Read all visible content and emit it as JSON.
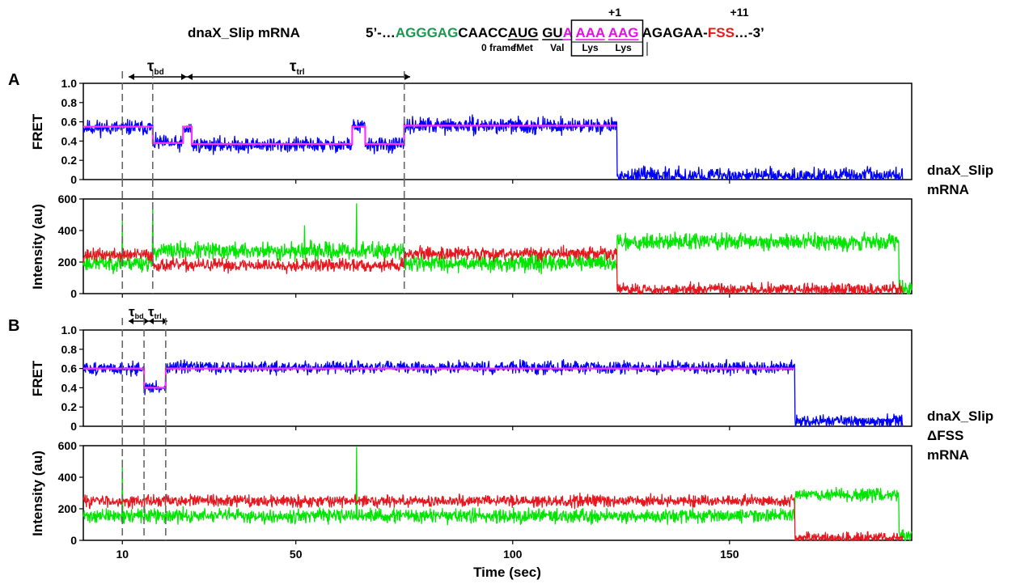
{
  "header": {
    "mrna_label": "dnaX_Slip mRNA",
    "pos1": "+1",
    "pos11": "+11",
    "seq_parts": [
      {
        "text": "5’-…",
        "color": "#000000"
      },
      {
        "text": "AGGGAG",
        "color": "#1a9850"
      },
      {
        "text": "CAACC",
        "color": "#000000"
      },
      {
        "text": "AUG",
        "color": "#000000",
        "underline": true
      },
      {
        "text": " ",
        "color": "#000000"
      },
      {
        "text": "GU",
        "color": "#000000",
        "underline": true
      },
      {
        "text": "A",
        "color": "#e60fe6",
        "underline": true
      },
      {
        "text": " ",
        "color": "#000000"
      },
      {
        "text": "AAA",
        "color": "#e60fe6",
        "underline": true
      },
      {
        "text": " ",
        "color": "#000000"
      },
      {
        "text": "AAG",
        "color": "#e60fe6",
        "underline": true
      },
      {
        "text": " AGAGAA-",
        "color": "#000000"
      },
      {
        "text": "FSS",
        "color": "#e41a1c"
      },
      {
        "text": "…-3’",
        "color": "#000000"
      }
    ],
    "frame_label": "0 frame:",
    "codon_labels": [
      "fMet",
      "Val",
      "Lys",
      "Lys"
    ]
  },
  "panel_labels": [
    "A",
    "B"
  ],
  "right_labels": {
    "a": [
      "dnaX_Slip",
      "mRNA"
    ],
    "b": [
      "dnaX_Slip",
      "ΔFSS",
      "mRNA"
    ]
  },
  "tau": {
    "bd": "τ",
    "bd_sub": "bd",
    "trl": "τ",
    "trl_sub": "trl"
  },
  "colors": {
    "fret": "#0000ff",
    "fit": "#ff33ff",
    "green": "#00e600",
    "red": "#e6171f",
    "dash": "#666666"
  },
  "chart_data": [
    {
      "type": "line",
      "panel": "A",
      "ylabel": "FRET",
      "xlim": [
        1,
        192
      ],
      "ylim": [
        0,
        1.0
      ],
      "yticks": [
        0,
        0.2,
        0.4,
        0.6,
        0.8,
        1.0
      ],
      "ytick_labels": [
        "0",
        "0.2",
        "0.4",
        "0.6",
        "0.8",
        "1.0"
      ],
      "xticks": [
        10,
        50,
        100,
        150
      ],
      "series": [
        {
          "role": "data",
          "color": "#0000ff",
          "noise": 0.055,
          "seed": 11,
          "segments": [
            [
              1,
              17,
              0.54
            ],
            [
              17,
              21,
              0.38
            ],
            [
              21,
              24,
              0.37
            ],
            [
              24,
              26,
              0.52
            ],
            [
              26,
              63,
              0.36
            ],
            [
              63,
              66,
              0.55
            ],
            [
              66,
              75,
              0.36
            ],
            [
              75,
              124,
              0.56
            ],
            [
              124,
              190,
              0.04
            ]
          ]
        },
        {
          "role": "fit",
          "color": "#ff33ff",
          "steps": [
            [
              1,
              17,
              0.55
            ],
            [
              17,
              24,
              0.38
            ],
            [
              24,
              26,
              0.55
            ],
            [
              26,
              63,
              0.37
            ],
            [
              63,
              66,
              0.55
            ],
            [
              66,
              75,
              0.37
            ],
            [
              75,
              124,
              0.56
            ]
          ]
        }
      ],
      "markers": [
        10,
        17,
        75
      ]
    },
    {
      "type": "line",
      "panel": "A",
      "ylabel": "Intensity (au)",
      "xlim": [
        1,
        192
      ],
      "ylim": [
        0,
        600
      ],
      "yticks": [
        0,
        200,
        400,
        600
      ],
      "ytick_labels": [
        "0",
        "200",
        "400",
        "600"
      ],
      "xticks": [
        10,
        50,
        100,
        150
      ],
      "series": [
        {
          "role": "green",
          "color": "#00e600",
          "noise": 38,
          "seed": 23,
          "segments": [
            [
              1,
              17,
              195
            ],
            [
              17,
              75,
              270
            ],
            [
              75,
              124,
              195
            ],
            [
              124,
              189,
              330
            ],
            [
              189,
              192,
              30
            ]
          ],
          "spikes": [
            [
              10,
              480
            ],
            [
              17,
              570
            ],
            [
              64,
              570
            ],
            [
              52,
              430
            ]
          ]
        },
        {
          "role": "red",
          "color": "#e6171f",
          "noise": 28,
          "seed": 37,
          "segments": [
            [
              1,
              17,
              245
            ],
            [
              17,
              75,
              180
            ],
            [
              75,
              124,
              255
            ],
            [
              124,
              190,
              25
            ]
          ]
        }
      ],
      "markers": [
        10,
        17,
        75
      ]
    },
    {
      "type": "line",
      "panel": "B",
      "ylabel": "FRET",
      "xlim": [
        1,
        192
      ],
      "ylim": [
        0,
        1.0
      ],
      "yticks": [
        0,
        0.2,
        0.4,
        0.6,
        0.8,
        1.0
      ],
      "ytick_labels": [
        "0",
        "0.2",
        "0.4",
        "0.6",
        "0.8",
        "1.0"
      ],
      "xticks": [
        10,
        50,
        100,
        150
      ],
      "series": [
        {
          "role": "data",
          "color": "#0000ff",
          "noise": 0.045,
          "seed": 51,
          "segments": [
            [
              1,
              15,
              0.6
            ],
            [
              15,
              20,
              0.4
            ],
            [
              20,
              165,
              0.61
            ],
            [
              165,
              190,
              0.05
            ]
          ]
        },
        {
          "role": "fit",
          "color": "#ff33ff",
          "steps": [
            [
              1,
              15,
              0.6
            ],
            [
              15,
              20,
              0.4
            ],
            [
              20,
              165,
              0.6
            ]
          ]
        }
      ],
      "markers": [
        10,
        15,
        20
      ]
    },
    {
      "type": "line",
      "panel": "B",
      "ylabel": "Intensity (au)",
      "xlabel": "Time (sec)",
      "xlim": [
        1,
        192
      ],
      "ylim": [
        0,
        600
      ],
      "yticks": [
        0,
        200,
        400,
        600
      ],
      "ytick_labels": [
        "0",
        "200",
        "400",
        "600"
      ],
      "xticks": [
        10,
        50,
        100,
        150
      ],
      "xtick_labels": [
        "10",
        "50",
        "100",
        "150"
      ],
      "series": [
        {
          "role": "green",
          "color": "#00e600",
          "noise": 30,
          "seed": 71,
          "segments": [
            [
              1,
              165,
              155
            ],
            [
              165,
              189,
              290
            ],
            [
              189,
              192,
              30
            ]
          ],
          "spikes": [
            [
              10,
              510
            ],
            [
              64,
              590
            ]
          ]
        },
        {
          "role": "red",
          "color": "#e6171f",
          "noise": 26,
          "seed": 83,
          "segments": [
            [
              1,
              165,
              250
            ],
            [
              165,
              190,
              15
            ]
          ]
        }
      ],
      "markers": [
        10,
        15,
        20
      ]
    }
  ]
}
